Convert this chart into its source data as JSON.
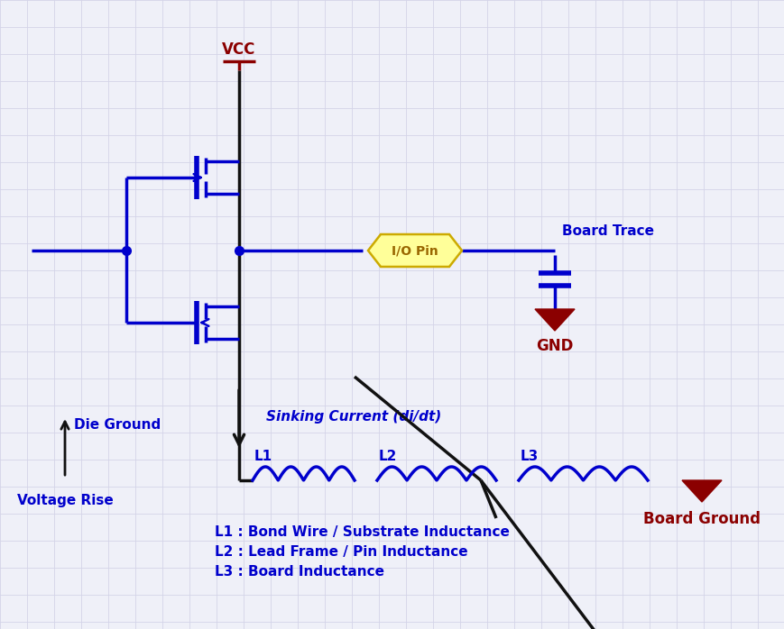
{
  "bg_color": "#eff0f8",
  "grid_color": "#d4d4e8",
  "blue": "#0000cc",
  "dark_red": "#8b0000",
  "black": "#111111",
  "yellow_fill": "#ffff99",
  "yellow_edge": "#bbaa00",
  "vcc_label": "VCC",
  "gnd_label": "GND",
  "board_ground_label": "Board Ground",
  "board_trace_label": "Board Trace",
  "io_pin_label": "I/O Pin",
  "sinking_label": "Sinking Current (di/dt)",
  "die_ground_label": "Die Ground",
  "voltage_rise_label": "Voltage Rise",
  "l1_label": "L1",
  "l2_label": "L2",
  "l3_label": "L3",
  "legend1": "L1 : Bond Wire / Substrate Inductance",
  "legend2": "L2 : Lead Frame / Pin Inductance",
  "legend3": "L3 : Board Inductance"
}
